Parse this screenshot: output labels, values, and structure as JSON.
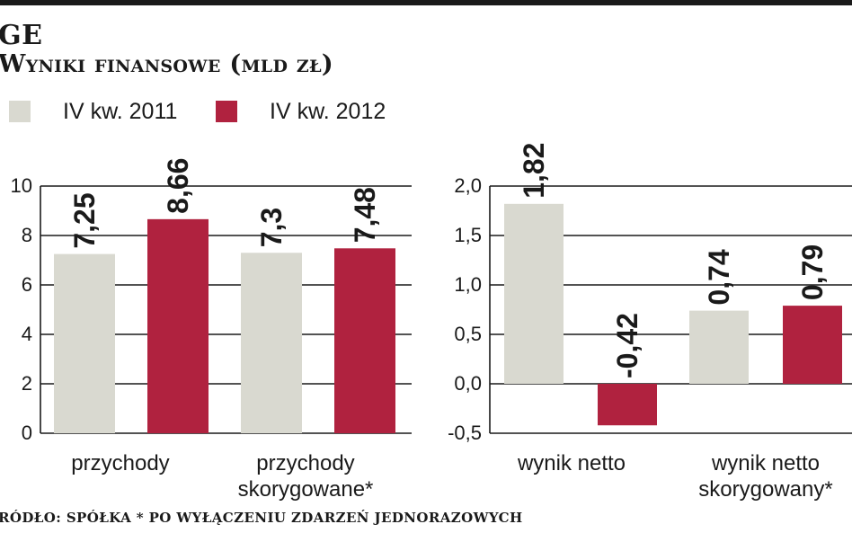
{
  "header": {
    "title": "GE",
    "subtitle": "Wyniki finansowe (mld zł)"
  },
  "legend": [
    {
      "label": "IV kw. 2011",
      "color": "#d9d9d0"
    },
    {
      "label": "IV kw. 2012",
      "color": "#b0223f"
    }
  ],
  "footer": {
    "note": "RÓDŁO: SPÓŁKA * PO WYŁĄCZENIU ZDARZEŃ JEDNORAZOWYCH"
  },
  "chart_data": [
    {
      "type": "bar",
      "categories": [
        [
          "przychody"
        ],
        [
          "przychody",
          "skorygowane*"
        ]
      ],
      "series": [
        {
          "name": "IV kw. 2011",
          "values": [
            7.25,
            7.3
          ],
          "labels": [
            "7,25",
            "7,3"
          ]
        },
        {
          "name": "IV kw. 2012",
          "values": [
            8.66,
            7.48
          ],
          "labels": [
            "8,66",
            "7,48"
          ]
        }
      ],
      "ylim": [
        0,
        10
      ],
      "yticks": [
        0,
        2,
        4,
        6,
        8,
        10
      ],
      "ytick_labels": [
        "0",
        "2",
        "4",
        "6",
        "8",
        "10"
      ],
      "grid": true
    },
    {
      "type": "bar",
      "categories": [
        [
          "wynik netto"
        ],
        [
          "wynik netto",
          "skorygowany*"
        ]
      ],
      "series": [
        {
          "name": "IV kw. 2011",
          "values": [
            1.82,
            0.74
          ],
          "labels": [
            "1,82",
            "0,74"
          ]
        },
        {
          "name": "IV kw. 2012",
          "values": [
            -0.42,
            0.79
          ],
          "labels": [
            "-0,42",
            "0,79"
          ]
        }
      ],
      "ylim": [
        -0.5,
        2.0
      ],
      "yticks": [
        -0.5,
        0.0,
        0.5,
        1.0,
        1.5,
        2.0
      ],
      "ytick_labels": [
        "-0,5",
        "0,0",
        "0,5",
        "1,0",
        "1,5",
        "2,0"
      ],
      "grid": true
    }
  ]
}
